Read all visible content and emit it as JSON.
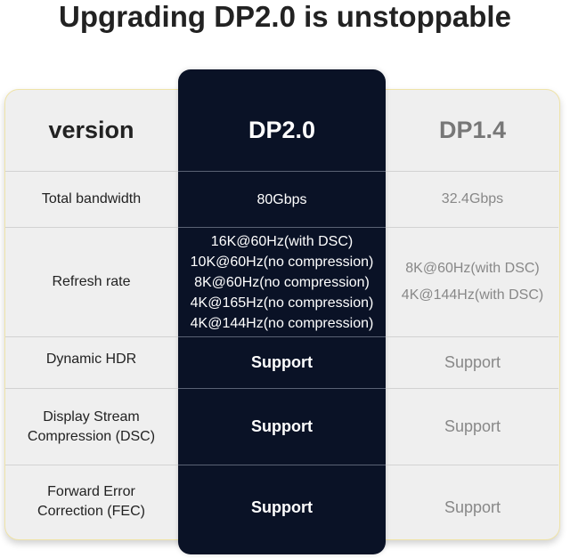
{
  "title": "Upgrading DP2.0 is unstoppable",
  "table": {
    "headers": [
      "version",
      "DP2.0",
      "DP1.4"
    ],
    "rows": [
      {
        "feature": "Total bandwidth",
        "dp20": [
          "80Gbps"
        ],
        "dp14": [
          "32.4Gbps"
        ]
      },
      {
        "feature": "Refresh rate",
        "dp20": [
          "16K@60Hz(with DSC)",
          "10K@60Hz(no compression)",
          "8K@60Hz(no compression)",
          "4K@165Hz(no compression)",
          "4K@144Hz(no compression)"
        ],
        "dp14": [
          "8K@60Hz(with DSC)",
          "4K@144Hz(with DSC)"
        ]
      },
      {
        "feature": "Dynamic HDR",
        "dp20": [
          "Support"
        ],
        "dp14": [
          "Support"
        ]
      },
      {
        "feature": "Display Stream Compression (DSC)",
        "dp20": [
          "Support"
        ],
        "dp14": [
          "Support"
        ]
      },
      {
        "feature": "Forward Error Correction (FEC)",
        "dp20": [
          "Support"
        ],
        "dp14": [
          "Support"
        ]
      }
    ]
  },
  "colors": {
    "highlight_column": "#0a1226",
    "card": "#efefef",
    "border": "#efe3a8"
  }
}
